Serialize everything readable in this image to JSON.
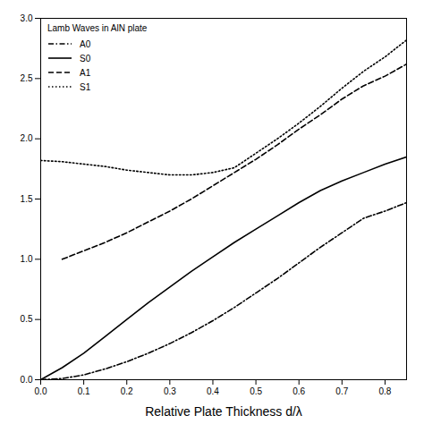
{
  "chart_data": {
    "type": "line",
    "legend_title": "Lamb  Waves in AlN plate",
    "xlabel": "Relative Plate Thickness d/λ",
    "x": [
      0.0,
      0.05,
      0.1,
      0.15,
      0.2,
      0.25,
      0.3,
      0.35,
      0.4,
      0.45,
      0.5,
      0.55,
      0.6,
      0.65,
      0.7,
      0.75,
      0.8,
      0.85
    ],
    "series": [
      {
        "name": "A0",
        "line_style": "dash_dot",
        "values": [
          0.0,
          0.01,
          0.04,
          0.09,
          0.15,
          0.22,
          0.3,
          0.39,
          0.49,
          0.6,
          0.72,
          0.84,
          0.97,
          1.1,
          1.22,
          1.34,
          1.4,
          1.47
        ]
      },
      {
        "name": "S0",
        "line_style": "solid",
        "values": [
          0.0,
          0.1,
          0.22,
          0.36,
          0.5,
          0.64,
          0.77,
          0.9,
          1.02,
          1.14,
          1.25,
          1.36,
          1.47,
          1.57,
          1.65,
          1.72,
          1.79,
          1.85
        ]
      },
      {
        "name": "A1",
        "line_style": "dashed",
        "values": [
          null,
          1.0,
          1.07,
          1.14,
          1.22,
          1.31,
          1.4,
          1.5,
          1.61,
          1.72,
          1.83,
          1.95,
          2.08,
          2.2,
          2.33,
          2.44,
          2.52,
          2.62
        ]
      },
      {
        "name": "S1",
        "line_style": "dotted",
        "values": [
          1.82,
          1.81,
          1.79,
          1.77,
          1.74,
          1.72,
          1.7,
          1.7,
          1.72,
          1.76,
          1.88,
          2.0,
          2.13,
          2.27,
          2.42,
          2.56,
          2.68,
          2.82
        ]
      }
    ],
    "color": "#000000",
    "xlim": [
      0.0,
      0.85
    ],
    "ylim": [
      0.0,
      3.0
    ],
    "xticks": [
      {
        "value": 0,
        "label": "0.0"
      },
      0.1,
      0.2,
      0.3,
      0.4,
      0.5,
      0.6,
      0.7,
      0.8
    ],
    "yticks": [
      {
        "value": 0,
        "label": "0.0"
      },
      0.5,
      {
        "value": 1,
        "label": "1.0"
      },
      1.5,
      {
        "value": 2,
        "label": "2.0"
      },
      2.5,
      {
        "value": 3,
        "label": "3.0"
      }
    ],
    "legend": "upper left",
    "grid": false
  }
}
